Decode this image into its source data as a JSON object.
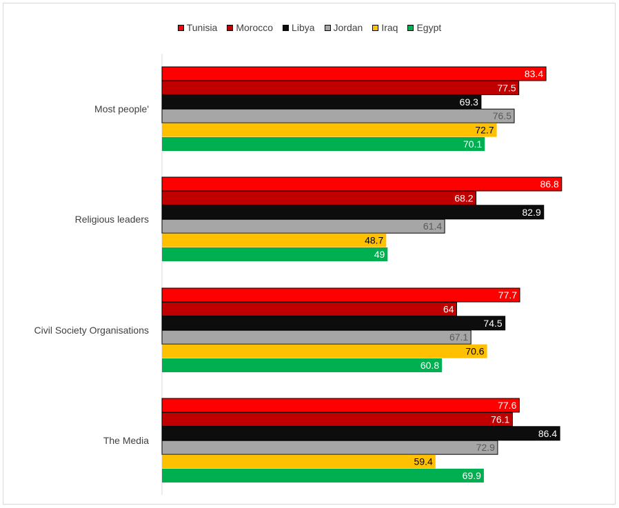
{
  "chart_data": {
    "type": "bar",
    "orientation": "horizontal",
    "categories": [
      "Most people'",
      "Religious leaders",
      "Civil Society Organisations",
      "The Media"
    ],
    "series": [
      {
        "name": "Tunisia",
        "color": "#ff0000",
        "label_color": "#ffffff",
        "values": [
          83.4,
          86.8,
          77.7,
          77.6
        ]
      },
      {
        "name": "Morocco",
        "color": "#c00000",
        "label_color": "#ffffff",
        "values": [
          77.5,
          68.2,
          64,
          76.1
        ]
      },
      {
        "name": "Libya",
        "color": "#0d0d0d",
        "label_color": "#ffffff",
        "values": [
          69.3,
          82.9,
          74.5,
          86.4
        ]
      },
      {
        "name": "Jordan",
        "color": "#a6a6a6",
        "label_color": "#595959",
        "values": [
          76.5,
          61.4,
          67.1,
          72.9
        ]
      },
      {
        "name": "Iraq",
        "color": "#ffc000",
        "label_color": "#000000",
        "values": [
          72.7,
          48.7,
          70.6,
          59.4
        ]
      },
      {
        "name": "Egypt",
        "color": "#00b050",
        "label_color": "#ffffff",
        "values": [
          70.1,
          49,
          60.8,
          69.9
        ]
      }
    ],
    "xlim": [
      0,
      100
    ],
    "axis_visible": false,
    "grid": false,
    "legend_position": "top",
    "data_labels": true
  }
}
